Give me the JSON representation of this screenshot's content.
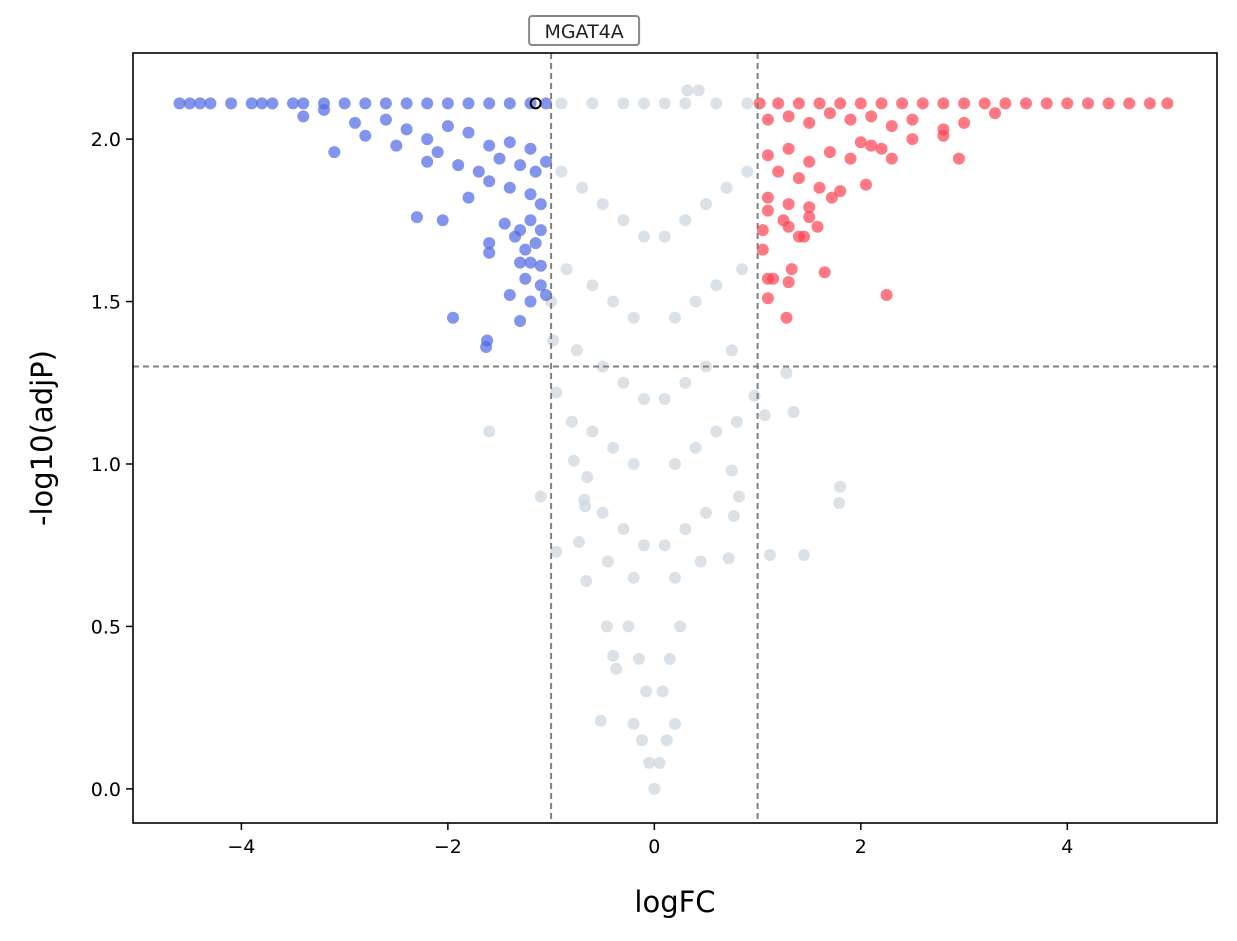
{
  "chart_data": {
    "type": "scatter",
    "title": "",
    "xlabel": "logFC",
    "ylabel": "-log10(adjP)",
    "xlim": [
      -5.05,
      5.45
    ],
    "ylim": [
      -0.105,
      2.265
    ],
    "x_ticks": [
      -4,
      -2,
      0,
      2,
      4
    ],
    "x_tick_labels": [
      "−4",
      "−2",
      "0",
      "2",
      "4"
    ],
    "y_ticks": [
      0.0,
      0.5,
      1.0,
      1.5,
      2.0
    ],
    "y_tick_labels": [
      "0.0",
      "0.5",
      "1.0",
      "1.5",
      "2.0"
    ],
    "grid": false,
    "thresholds": {
      "logfc_low": -1,
      "logfc_high": 1,
      "neg_log10_p": 1.3
    },
    "colors": {
      "down": "#4f66e6",
      "up": "#ff4050",
      "ns": "#cfd8df",
      "threshold_line": "#808080",
      "highlight_edge": "#000000"
    },
    "series": [
      {
        "name": "down",
        "points": [
          [
            -4.6,
            2.11
          ],
          [
            -4.5,
            2.11
          ],
          [
            -4.4,
            2.11
          ],
          [
            -4.3,
            2.11
          ],
          [
            -4.1,
            2.11
          ],
          [
            -3.9,
            2.11
          ],
          [
            -3.8,
            2.11
          ],
          [
            -3.7,
            2.11
          ],
          [
            -3.5,
            2.11
          ],
          [
            -3.4,
            2.11
          ],
          [
            -3.2,
            2.11
          ],
          [
            -3.0,
            2.11
          ],
          [
            -2.8,
            2.11
          ],
          [
            -2.6,
            2.11
          ],
          [
            -2.4,
            2.11
          ],
          [
            -2.2,
            2.11
          ],
          [
            -2.0,
            2.11
          ],
          [
            -1.8,
            2.11
          ],
          [
            -1.6,
            2.11
          ],
          [
            -1.4,
            2.11
          ],
          [
            -1.2,
            2.11
          ],
          [
            -1.05,
            2.11
          ],
          [
            -3.4,
            2.07
          ],
          [
            -3.2,
            2.09
          ],
          [
            -2.9,
            2.05
          ],
          [
            -2.6,
            2.06
          ],
          [
            -2.4,
            2.03
          ],
          [
            -2.2,
            2.0
          ],
          [
            -2.0,
            2.04
          ],
          [
            -1.8,
            2.02
          ],
          [
            -1.6,
            1.98
          ],
          [
            -1.4,
            1.99
          ],
          [
            -1.2,
            1.97
          ],
          [
            -3.1,
            1.96
          ],
          [
            -2.8,
            2.01
          ],
          [
            -2.5,
            1.98
          ],
          [
            -2.2,
            1.93
          ],
          [
            -2.1,
            1.96
          ],
          [
            -1.9,
            1.92
          ],
          [
            -1.7,
            1.9
          ],
          [
            -1.5,
            1.94
          ],
          [
            -1.3,
            1.92
          ],
          [
            -1.15,
            1.9
          ],
          [
            -1.05,
            1.93
          ],
          [
            -1.8,
            1.82
          ],
          [
            -1.6,
            1.87
          ],
          [
            -1.4,
            1.85
          ],
          [
            -1.2,
            1.83
          ],
          [
            -1.1,
            1.8
          ],
          [
            -2.3,
            1.76
          ],
          [
            -2.05,
            1.75
          ],
          [
            -1.45,
            1.74
          ],
          [
            -1.3,
            1.72
          ],
          [
            -1.2,
            1.75
          ],
          [
            -1.1,
            1.72
          ],
          [
            -1.6,
            1.68
          ],
          [
            -1.35,
            1.7
          ],
          [
            -1.25,
            1.66
          ],
          [
            -1.15,
            1.68
          ],
          [
            -1.6,
            1.65
          ],
          [
            -1.3,
            1.62
          ],
          [
            -1.2,
            1.62
          ],
          [
            -1.1,
            1.61
          ],
          [
            -1.25,
            1.57
          ],
          [
            -1.1,
            1.55
          ],
          [
            -1.4,
            1.52
          ],
          [
            -1.2,
            1.5
          ],
          [
            -1.05,
            1.52
          ],
          [
            -1.95,
            1.45
          ],
          [
            -1.3,
            1.44
          ],
          [
            -1.62,
            1.38
          ],
          [
            -1.63,
            1.36
          ]
        ]
      },
      {
        "name": "up",
        "points": [
          [
            1.02,
            2.11
          ],
          [
            1.2,
            2.11
          ],
          [
            1.4,
            2.11
          ],
          [
            1.6,
            2.11
          ],
          [
            1.8,
            2.11
          ],
          [
            2.0,
            2.11
          ],
          [
            2.2,
            2.11
          ],
          [
            2.4,
            2.11
          ],
          [
            2.6,
            2.11
          ],
          [
            2.8,
            2.11
          ],
          [
            3.0,
            2.11
          ],
          [
            3.2,
            2.11
          ],
          [
            3.4,
            2.11
          ],
          [
            3.6,
            2.11
          ],
          [
            3.8,
            2.11
          ],
          [
            4.0,
            2.11
          ],
          [
            4.2,
            2.11
          ],
          [
            4.4,
            2.11
          ],
          [
            4.6,
            2.11
          ],
          [
            4.8,
            2.11
          ],
          [
            4.97,
            2.11
          ],
          [
            1.1,
            2.06
          ],
          [
            1.3,
            2.07
          ],
          [
            1.5,
            2.05
          ],
          [
            1.7,
            2.08
          ],
          [
            1.9,
            2.06
          ],
          [
            2.1,
            2.07
          ],
          [
            2.3,
            2.04
          ],
          [
            2.5,
            2.06
          ],
          [
            2.8,
            2.03
          ],
          [
            3.0,
            2.05
          ],
          [
            3.3,
            2.08
          ],
          [
            2.0,
            1.99
          ],
          [
            2.2,
            1.97
          ],
          [
            2.5,
            2.0
          ],
          [
            2.8,
            2.01
          ],
          [
            1.1,
            1.95
          ],
          [
            1.3,
            1.97
          ],
          [
            1.5,
            1.93
          ],
          [
            1.7,
            1.96
          ],
          [
            1.9,
            1.94
          ],
          [
            2.1,
            1.98
          ],
          [
            2.3,
            1.94
          ],
          [
            2.95,
            1.94
          ],
          [
            1.2,
            1.9
          ],
          [
            1.4,
            1.88
          ],
          [
            1.6,
            1.85
          ],
          [
            1.8,
            1.84
          ],
          [
            2.05,
            1.86
          ],
          [
            1.1,
            1.82
          ],
          [
            1.3,
            1.8
          ],
          [
            1.5,
            1.79
          ],
          [
            1.72,
            1.82
          ],
          [
            1.1,
            1.78
          ],
          [
            1.25,
            1.75
          ],
          [
            1.5,
            1.76
          ],
          [
            1.05,
            1.72
          ],
          [
            1.3,
            1.73
          ],
          [
            1.4,
            1.7
          ],
          [
            1.45,
            1.7
          ],
          [
            1.58,
            1.73
          ],
          [
            1.05,
            1.66
          ],
          [
            1.33,
            1.6
          ],
          [
            1.65,
            1.59
          ],
          [
            1.1,
            1.57
          ],
          [
            1.15,
            1.57
          ],
          [
            1.3,
            1.56
          ],
          [
            1.1,
            1.51
          ],
          [
            2.25,
            1.52
          ],
          [
            1.28,
            1.45
          ]
        ]
      },
      {
        "name": "ns",
        "points": [
          [
            -0.9,
            2.11
          ],
          [
            -0.6,
            2.11
          ],
          [
            -0.3,
            2.11
          ],
          [
            -0.1,
            2.11
          ],
          [
            0.1,
            2.11
          ],
          [
            0.3,
            2.11
          ],
          [
            0.6,
            2.11
          ],
          [
            0.9,
            2.11
          ],
          [
            0.32,
            2.15
          ],
          [
            0.43,
            2.15
          ],
          [
            -0.9,
            1.9
          ],
          [
            -0.7,
            1.85
          ],
          [
            -0.5,
            1.8
          ],
          [
            -0.3,
            1.75
          ],
          [
            -0.1,
            1.7
          ],
          [
            0.1,
            1.7
          ],
          [
            0.3,
            1.75
          ],
          [
            0.5,
            1.8
          ],
          [
            0.7,
            1.85
          ],
          [
            0.9,
            1.9
          ],
          [
            -0.85,
            1.6
          ],
          [
            -0.6,
            1.55
          ],
          [
            -0.4,
            1.5
          ],
          [
            -0.2,
            1.45
          ],
          [
            0.2,
            1.45
          ],
          [
            0.4,
            1.5
          ],
          [
            0.6,
            1.55
          ],
          [
            0.85,
            1.6
          ],
          [
            -1.0,
            1.5
          ],
          [
            -0.98,
            1.38
          ],
          [
            -0.95,
            1.22
          ],
          [
            0.97,
            1.21
          ],
          [
            1.07,
            1.15
          ],
          [
            1.35,
            1.16
          ],
          [
            1.28,
            1.28
          ],
          [
            -0.75,
            1.35
          ],
          [
            -0.5,
            1.3
          ],
          [
            -0.3,
            1.25
          ],
          [
            -0.1,
            1.2
          ],
          [
            0.1,
            1.2
          ],
          [
            0.3,
            1.25
          ],
          [
            0.5,
            1.3
          ],
          [
            0.75,
            1.35
          ],
          [
            -0.8,
            1.13
          ],
          [
            -0.6,
            1.1
          ],
          [
            -0.4,
            1.05
          ],
          [
            -0.2,
            1.0
          ],
          [
            0.2,
            1.0
          ],
          [
            0.4,
            1.05
          ],
          [
            0.6,
            1.1
          ],
          [
            0.8,
            1.13
          ],
          [
            -1.6,
            1.1
          ],
          [
            -0.78,
            1.01
          ],
          [
            -0.65,
            0.96
          ],
          [
            0.75,
            0.98
          ],
          [
            -1.1,
            0.9
          ],
          [
            -0.68,
            0.89
          ],
          [
            -0.67,
            0.87
          ],
          [
            0.82,
            0.9
          ],
          [
            0.77,
            0.84
          ],
          [
            1.8,
            0.93
          ],
          [
            1.79,
            0.88
          ],
          [
            -0.5,
            0.85
          ],
          [
            -0.3,
            0.8
          ],
          [
            -0.1,
            0.75
          ],
          [
            0.1,
            0.75
          ],
          [
            0.3,
            0.8
          ],
          [
            0.5,
            0.85
          ],
          [
            -0.95,
            0.73
          ],
          [
            -0.73,
            0.76
          ],
          [
            -0.45,
            0.7
          ],
          [
            -0.2,
            0.65
          ],
          [
            0.2,
            0.65
          ],
          [
            0.45,
            0.7
          ],
          [
            0.72,
            0.71
          ],
          [
            1.12,
            0.72
          ],
          [
            1.45,
            0.72
          ],
          [
            -0.66,
            0.64
          ],
          [
            -0.46,
            0.5
          ],
          [
            -0.4,
            0.41
          ],
          [
            -0.37,
            0.37
          ],
          [
            -0.52,
            0.21
          ],
          [
            -0.25,
            0.5
          ],
          [
            -0.15,
            0.4
          ],
          [
            -0.08,
            0.3
          ],
          [
            0.08,
            0.3
          ],
          [
            0.15,
            0.4
          ],
          [
            0.25,
            0.5
          ],
          [
            -0.2,
            0.2
          ],
          [
            -0.12,
            0.15
          ],
          [
            -0.05,
            0.08
          ],
          [
            0.0,
            0.0
          ],
          [
            0.05,
            0.08
          ],
          [
            0.12,
            0.15
          ],
          [
            0.2,
            0.2
          ]
        ]
      }
    ],
    "annotations": [
      {
        "label": "MGAT4A",
        "x": -1.15,
        "y": 2.11
      }
    ]
  }
}
